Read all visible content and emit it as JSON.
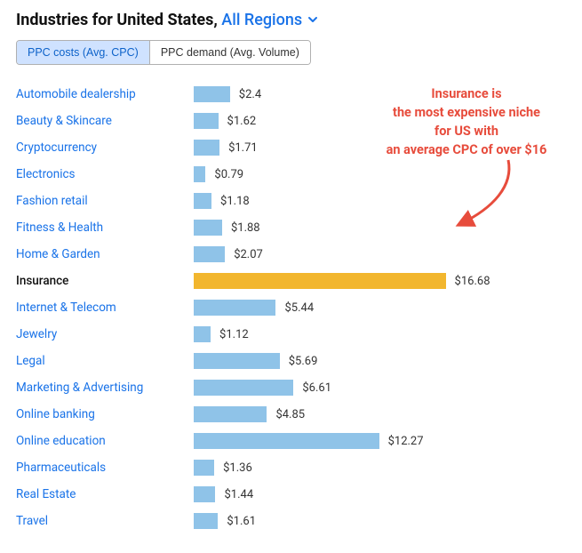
{
  "header": {
    "title_prefix": "Industries for United States,",
    "region_label": "All Regions"
  },
  "tabs": {
    "active_index": 0,
    "items": [
      {
        "label": "PPC costs (Avg. CPC)"
      },
      {
        "label": "PPC demand (Avg. Volume)"
      }
    ]
  },
  "chart": {
    "type": "bar-horizontal",
    "bar_color_default": "#8fc3e8",
    "bar_color_highlight": "#f2b62e",
    "bar_pixel_scale": 17,
    "value_prefix": "$",
    "rows": [
      {
        "label": "Automobile dealership",
        "value": 2.4,
        "highlight": false
      },
      {
        "label": "Beauty & Skincare",
        "value": 1.62,
        "highlight": false
      },
      {
        "label": "Cryptocurrency",
        "value": 1.71,
        "highlight": false
      },
      {
        "label": "Electronics",
        "value": 0.79,
        "highlight": false
      },
      {
        "label": "Fashion retail",
        "value": 1.18,
        "highlight": false
      },
      {
        "label": "Fitness & Health",
        "value": 1.88,
        "highlight": false
      },
      {
        "label": "Home & Garden",
        "value": 2.07,
        "highlight": false
      },
      {
        "label": "Insurance",
        "value": 16.68,
        "highlight": true
      },
      {
        "label": "Internet & Telecom",
        "value": 5.44,
        "highlight": false
      },
      {
        "label": "Jewelry",
        "value": 1.12,
        "highlight": false
      },
      {
        "label": "Legal",
        "value": 5.69,
        "highlight": false
      },
      {
        "label": "Marketing & Advertising",
        "value": 6.61,
        "highlight": false
      },
      {
        "label": "Online banking",
        "value": 4.85,
        "highlight": false
      },
      {
        "label": "Online education",
        "value": 12.27,
        "highlight": false
      },
      {
        "label": "Pharmaceuticals",
        "value": 1.36,
        "highlight": false
      },
      {
        "label": "Real Estate",
        "value": 1.44,
        "highlight": false
      },
      {
        "label": "Travel",
        "value": 1.61,
        "highlight": false
      }
    ]
  },
  "annotation": {
    "lines": [
      "Insurance is",
      "the most expensive niche",
      "for US with",
      "an average CPC of over $16"
    ],
    "text_color": "#e74c3c",
    "arrow_color": "#e74c3c"
  }
}
